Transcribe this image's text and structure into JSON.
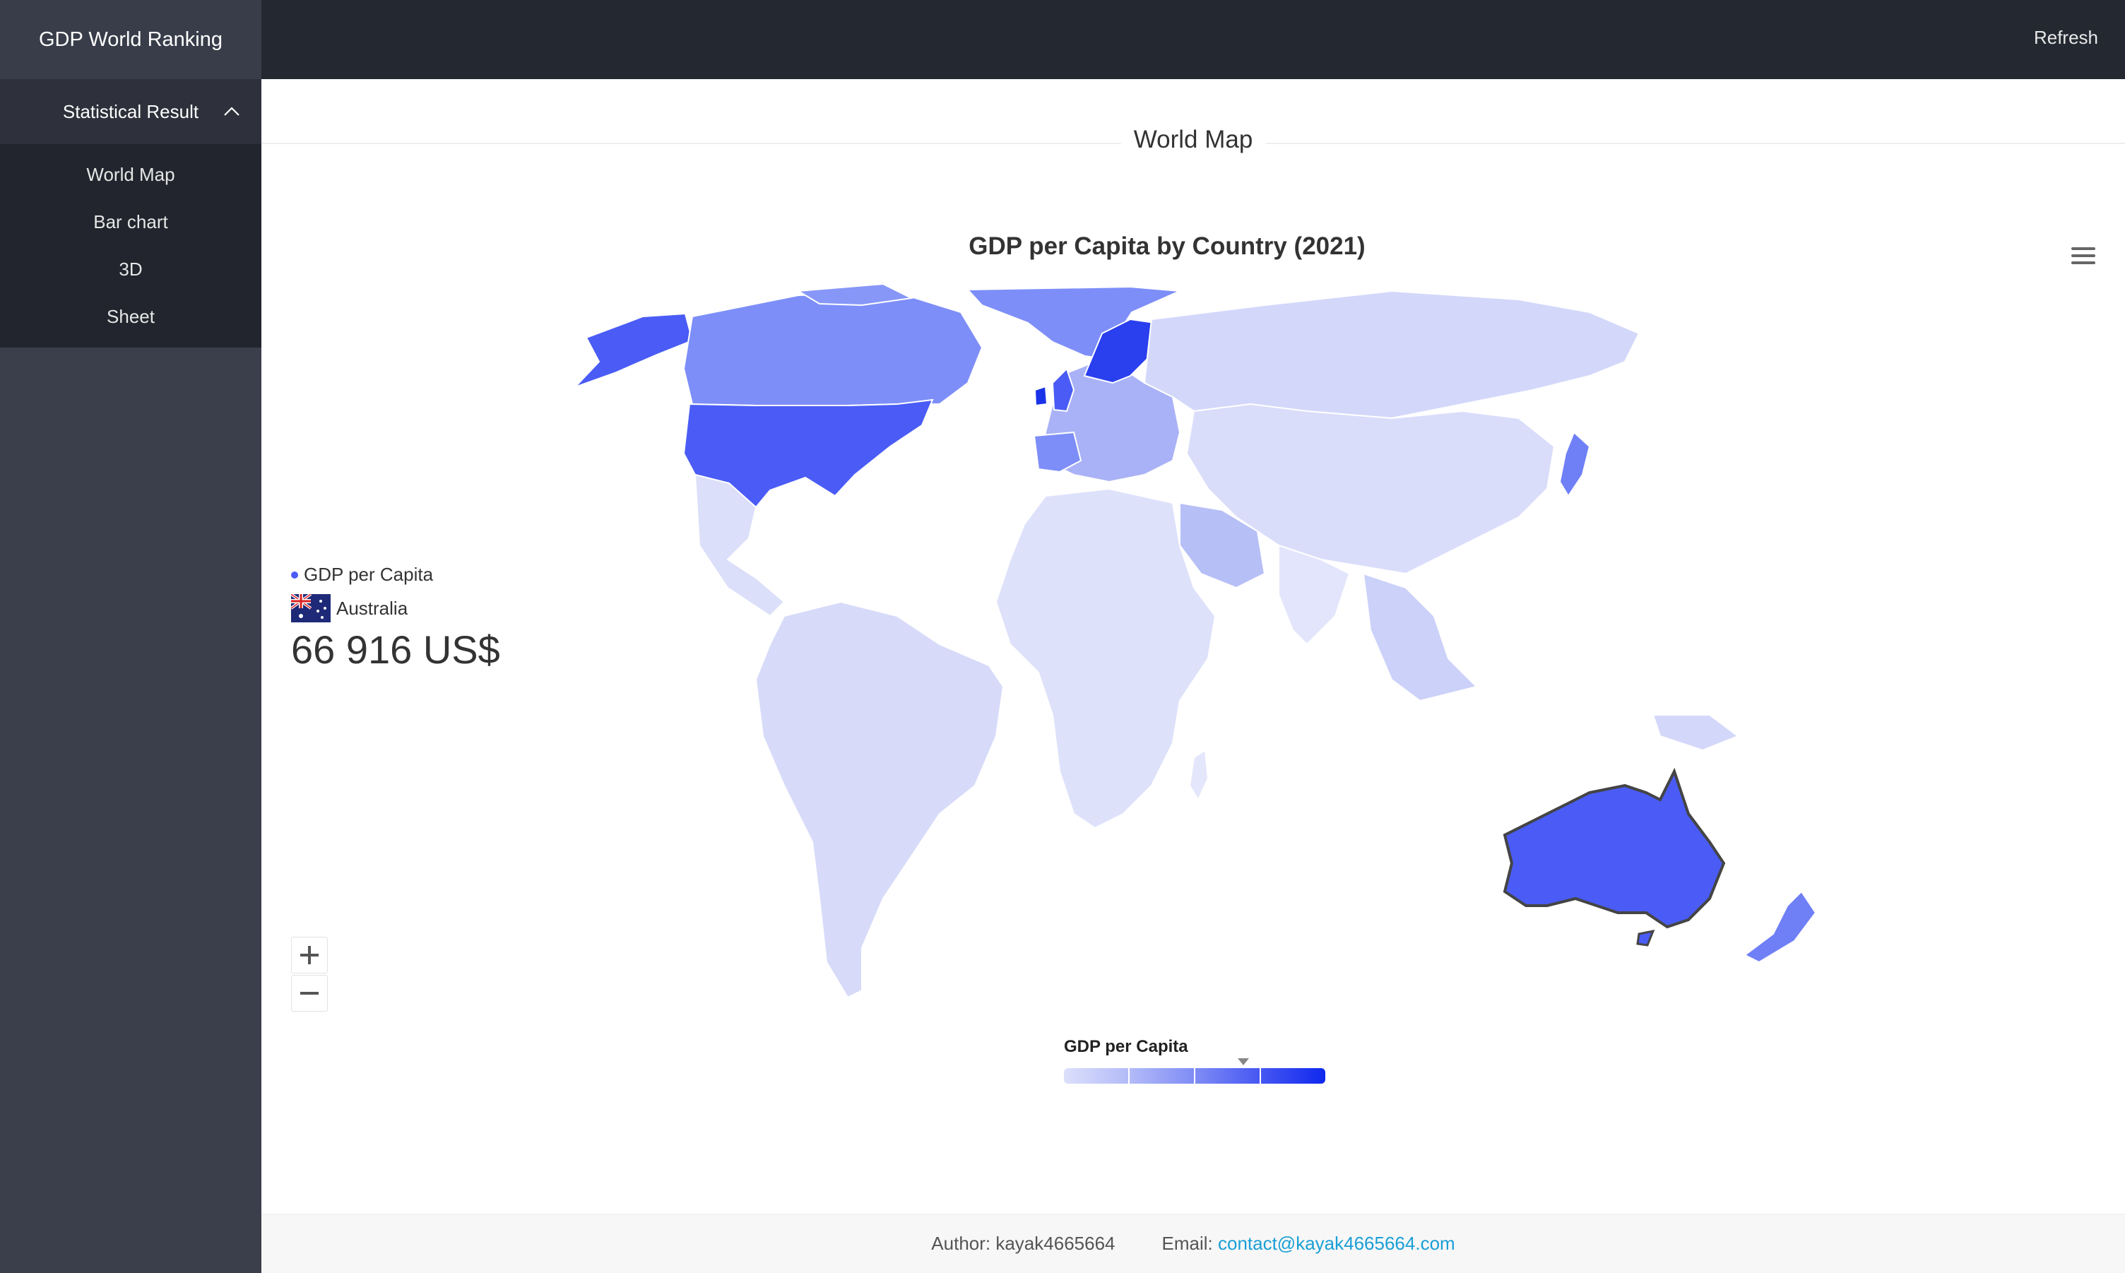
{
  "app": {
    "title": "GDP World Ranking"
  },
  "sidebar": {
    "group_label": "Statistical Result",
    "items": [
      {
        "label": "World Map"
      },
      {
        "label": "Bar chart"
      },
      {
        "label": "3D"
      },
      {
        "label": "Sheet"
      }
    ]
  },
  "header": {
    "refresh_label": "Refresh"
  },
  "main": {
    "section_title": "World Map"
  },
  "chart": {
    "title": "GDP per Capita by Country (2021)",
    "tooltip": {
      "series_name": "GDP per Capita",
      "country": "Australia",
      "value": "66 916 US$"
    },
    "legend_title": "GDP per Capita",
    "legend_colors": [
      "#dce0fb",
      "#b3bbf8",
      "#7f8cf5",
      "#4657f2",
      "#0f28ee"
    ]
  },
  "footer": {
    "author": "Author: kayak4665664",
    "email_label": "Email:",
    "email": "contact@kayak4665664.com"
  },
  "colors": {
    "sidebar_bg": "#3b3f4c",
    "topbar_bg": "#242831",
    "map_light": "#dbdff9",
    "map_mid": "#a9b2f6",
    "map_dark": "#4a5cf5",
    "map_darkest": "#1a33e8",
    "link": "#1a9fd6"
  },
  "icons": [
    "chevron-up-icon",
    "hamburger-menu-icon",
    "australia-flag-icon",
    "zoom-in-icon",
    "zoom-out-icon"
  ]
}
